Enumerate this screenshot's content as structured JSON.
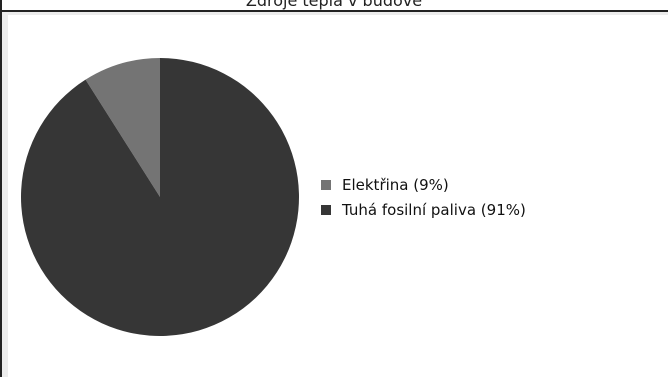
{
  "window": {
    "title": "Zdroje tepla v budově"
  },
  "chart_data": {
    "type": "pie",
    "title": "",
    "categories": [
      "Elektřina",
      "Tuhá fosilní paliva"
    ],
    "values": [
      9,
      91
    ],
    "colors": [
      "#747474",
      "#363636"
    ],
    "legend_labels": [
      "Elektřina (9%)",
      "Tuhá fosilní paliva (91%)"
    ],
    "legend_position": "right",
    "start_angle_note": "first slice ends at 12 o'clock, drawn counter-clockwise"
  }
}
